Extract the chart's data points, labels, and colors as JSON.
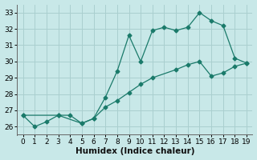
{
  "xlabel": "Humidex (Indice chaleur)",
  "xlim": [
    -0.5,
    19.5
  ],
  "ylim": [
    25.5,
    33.5
  ],
  "xticks": [
    0,
    1,
    2,
    3,
    4,
    5,
    6,
    7,
    8,
    9,
    10,
    11,
    12,
    13,
    14,
    15,
    16,
    17,
    18,
    19
  ],
  "yticks": [
    26,
    27,
    28,
    29,
    30,
    31,
    32,
    33
  ],
  "line1_x": [
    0,
    1,
    2,
    3,
    4,
    5,
    6,
    7,
    8,
    9,
    10,
    11,
    12,
    13,
    14,
    15,
    16,
    17,
    18,
    19
  ],
  "line1_y": [
    26.7,
    26.0,
    26.3,
    26.7,
    26.7,
    26.2,
    26.5,
    27.8,
    29.4,
    31.6,
    30.0,
    31.9,
    32.1,
    31.9,
    32.1,
    33.0,
    32.5,
    32.2,
    30.2,
    29.9
  ],
  "line2_x": [
    0,
    3,
    5,
    6,
    7,
    8,
    9,
    10,
    11,
    13,
    14,
    15,
    16,
    17,
    18,
    19
  ],
  "line2_y": [
    26.7,
    26.7,
    26.2,
    26.5,
    27.2,
    27.6,
    28.1,
    28.6,
    29.0,
    29.5,
    29.8,
    30.0,
    29.1,
    29.3,
    29.7,
    29.9
  ],
  "line_color": "#1a7a6a",
  "bg_color": "#c8e8e8",
  "grid_color": "#aacfcf",
  "marker": "D",
  "marker_size": 2.5,
  "tick_fontsize": 6.5,
  "label_fontsize": 7.5
}
